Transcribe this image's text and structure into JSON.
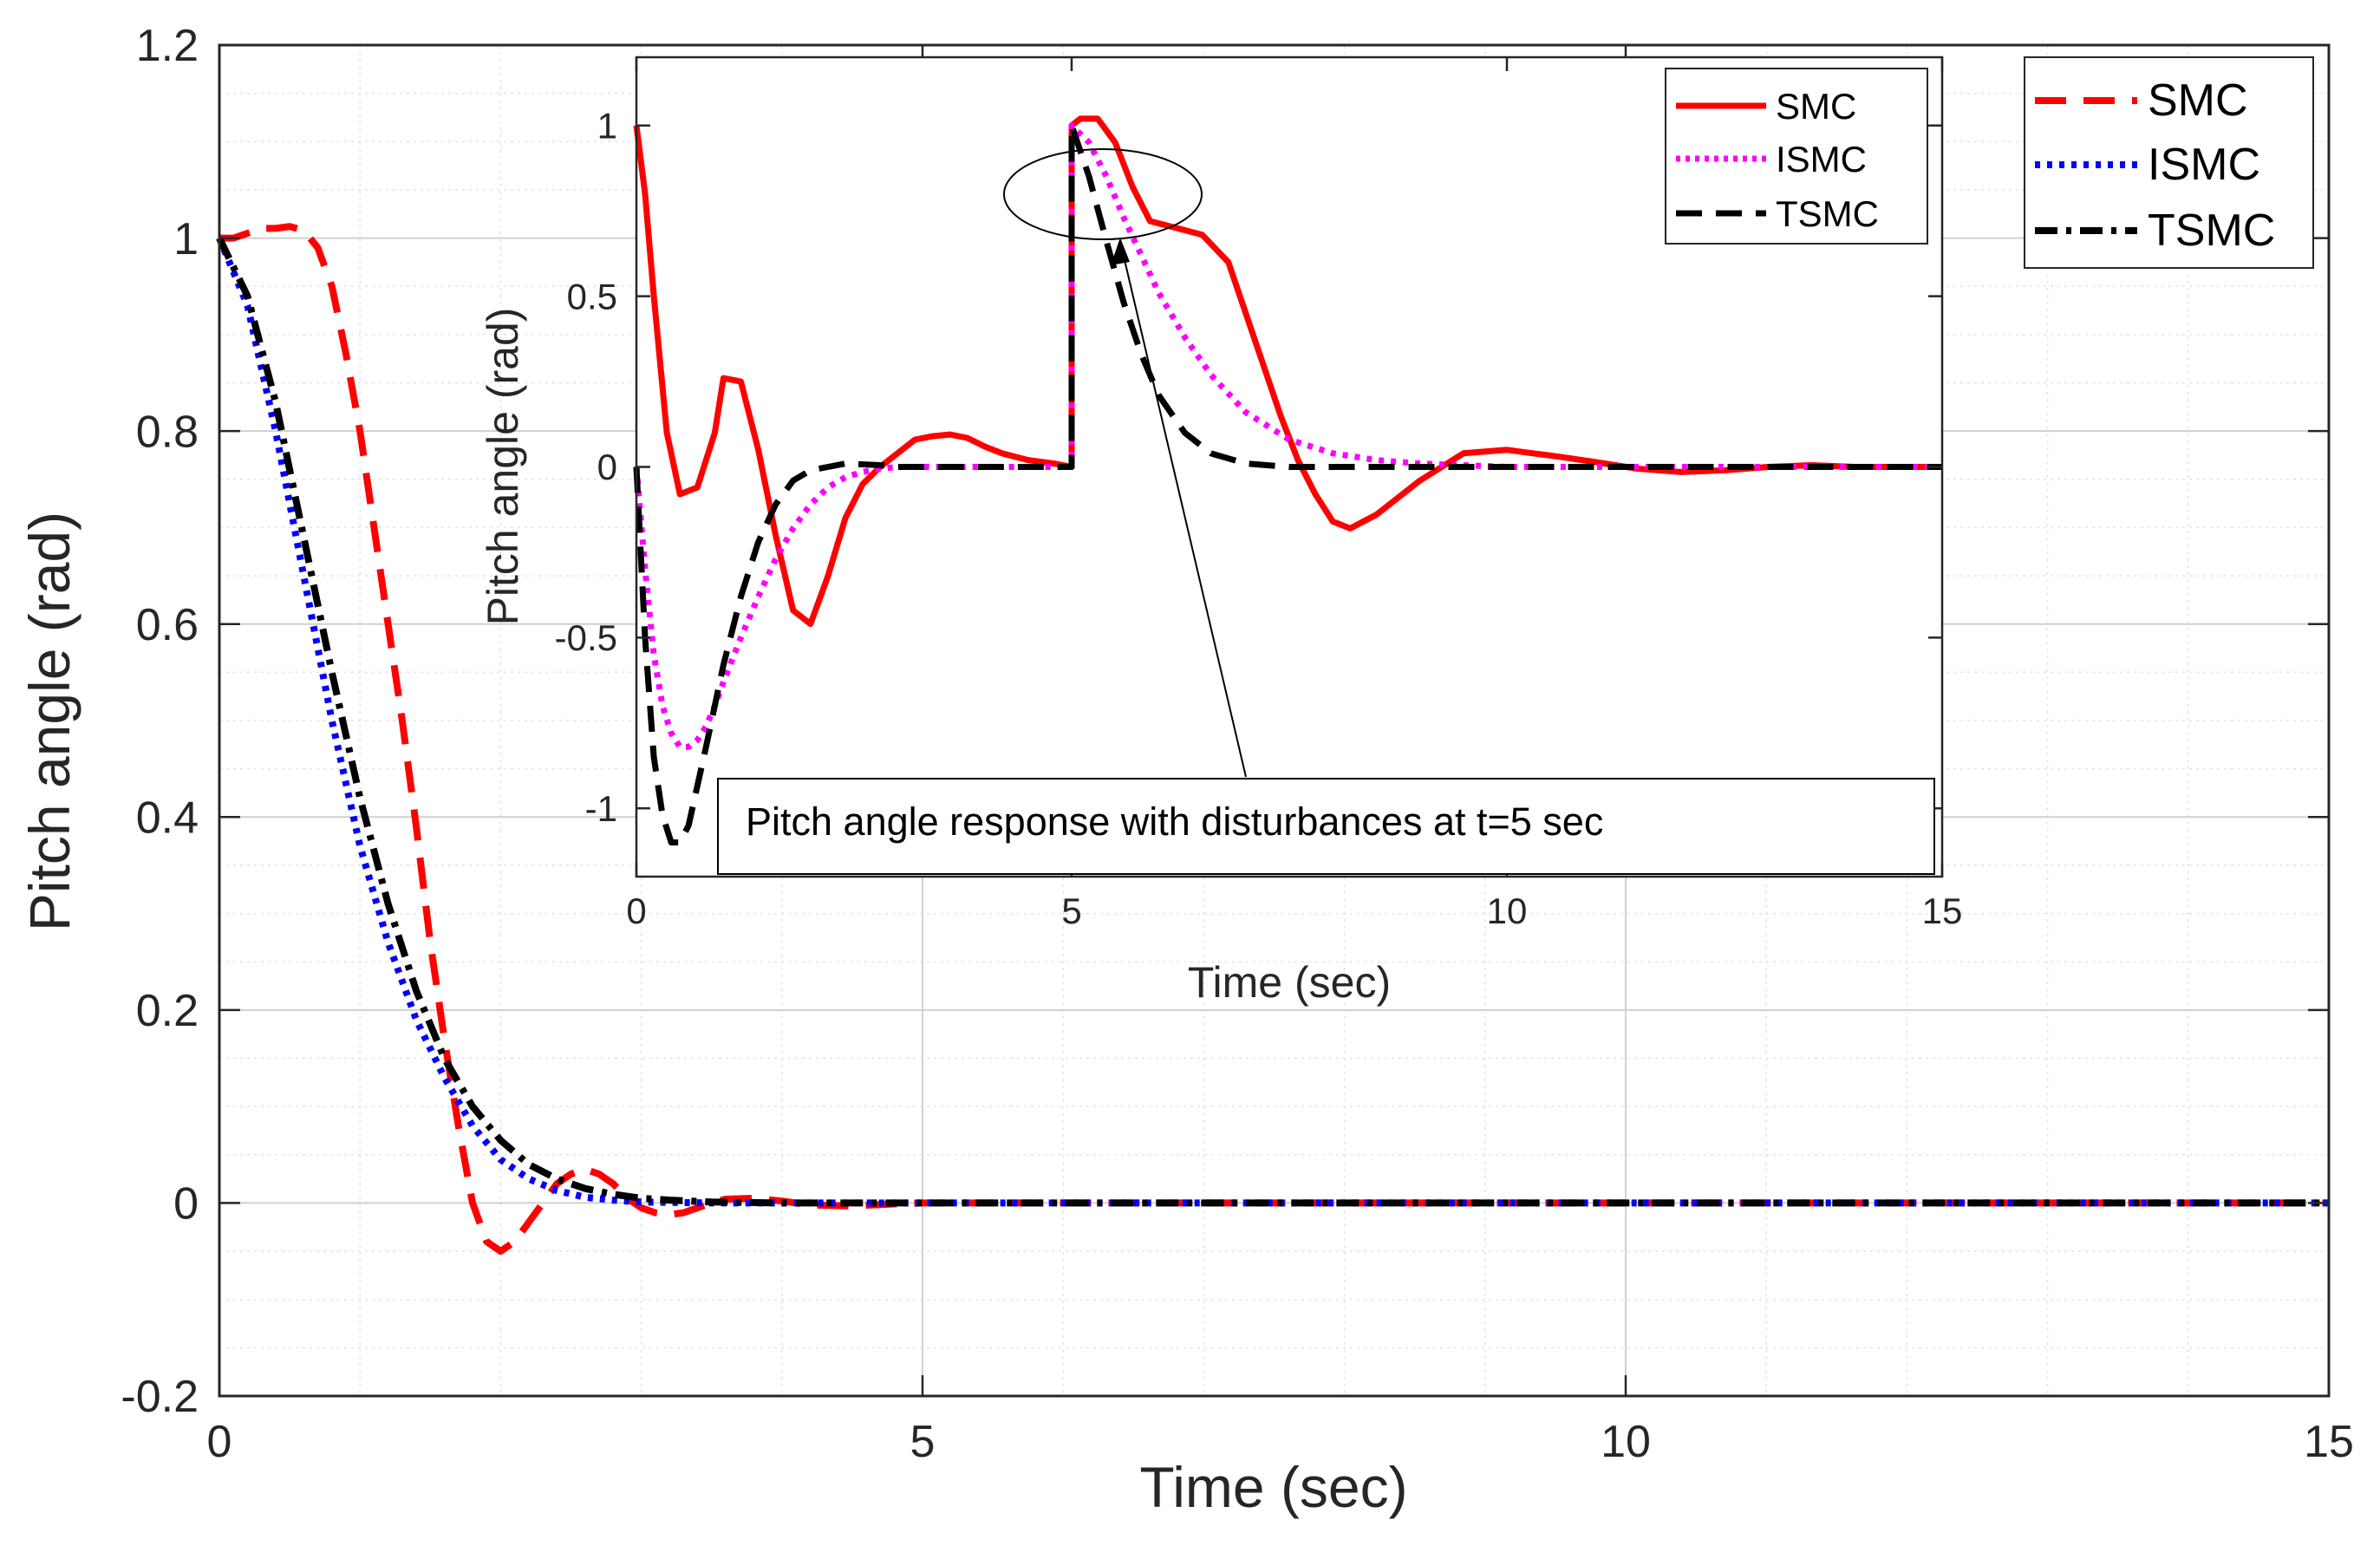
{
  "chart_data": [
    {
      "type": "line",
      "role": "main",
      "xlabel": "Time (sec)",
      "ylabel": "Pitch angle (rad)",
      "xlim": [
        0,
        15
      ],
      "ylim": [
        -0.2,
        1.2
      ],
      "xticks": [
        0,
        5,
        10,
        15
      ],
      "yticks": [
        -0.2,
        0,
        0.2,
        0.4,
        0.6,
        0.8,
        1,
        1.2
      ],
      "ytick_labels": [
        "-0.2",
        "0",
        "0.2",
        "0.4",
        "0.6",
        "0.8",
        "1",
        "1.2"
      ],
      "grid": "major-and-minor",
      "legend_position": "top-right",
      "series": [
        {
          "name": "SMC",
          "color": "#ff0000",
          "style": "dashed",
          "x": [
            0,
            0.1,
            0.2,
            0.3,
            0.4,
            0.5,
            0.6,
            0.7,
            0.8,
            0.9,
            1.0,
            1.1,
            1.2,
            1.3,
            1.4,
            1.5,
            1.6,
            1.7,
            1.8,
            1.9,
            2.0,
            2.1,
            2.2,
            2.3,
            2.4,
            2.5,
            2.6,
            2.7,
            2.8,
            2.9,
            3.0,
            3.1,
            3.2,
            3.3,
            3.4,
            3.5,
            3.6,
            3.8,
            4.0,
            4.2,
            4.5,
            4.8,
            5.0,
            6.0,
            8.0,
            10.0,
            15.0
          ],
          "y": [
            1.0,
            1.0,
            1.005,
            1.01,
            1.01,
            1.012,
            1.008,
            0.99,
            0.95,
            0.88,
            0.8,
            0.7,
            0.6,
            0.5,
            0.39,
            0.27,
            0.17,
            0.08,
            0.0,
            -0.04,
            -0.05,
            -0.04,
            -0.02,
            0.0,
            0.02,
            0.03,
            0.035,
            0.03,
            0.02,
            0.005,
            -0.005,
            -0.01,
            -0.012,
            -0.01,
            -0.005,
            0.0,
            0.004,
            0.005,
            0.002,
            -0.002,
            -0.003,
            -0.001,
            0.0,
            0.0,
            0.0,
            0.0,
            0.0
          ]
        },
        {
          "name": "ISMC",
          "color": "#0000ff",
          "style": "dotted",
          "x": [
            0,
            0.2,
            0.4,
            0.6,
            0.8,
            1.0,
            1.2,
            1.4,
            1.6,
            1.8,
            2.0,
            2.2,
            2.4,
            2.6,
            2.8,
            3.0,
            3.5,
            4.0,
            5.0,
            15.0
          ],
          "y": [
            1.0,
            0.93,
            0.8,
            0.65,
            0.5,
            0.37,
            0.27,
            0.19,
            0.13,
            0.08,
            0.045,
            0.025,
            0.013,
            0.006,
            0.003,
            0.001,
            0.0,
            0.0,
            0.0,
            0.0
          ]
        },
        {
          "name": "TSMC",
          "color": "#000000",
          "style": "dashdot",
          "x": [
            0,
            0.2,
            0.4,
            0.6,
            0.8,
            1.0,
            1.2,
            1.4,
            1.6,
            1.8,
            2.0,
            2.2,
            2.4,
            2.6,
            2.8,
            3.0,
            3.2,
            3.5,
            4.0,
            5.0,
            15.0
          ],
          "y": [
            1.0,
            0.94,
            0.83,
            0.69,
            0.55,
            0.42,
            0.31,
            0.22,
            0.15,
            0.1,
            0.065,
            0.04,
            0.025,
            0.015,
            0.009,
            0.005,
            0.003,
            0.001,
            0.0,
            0.0,
            0.0
          ]
        }
      ]
    },
    {
      "type": "line",
      "role": "inset",
      "xlabel": "Time (sec)",
      "ylabel": "Pitch angle (rad)",
      "xlim": [
        0,
        15
      ],
      "ylim": [
        -1.2,
        1.2
      ],
      "xticks": [
        0,
        5,
        10,
        15
      ],
      "yticks": [
        -1,
        -0.5,
        0,
        0.5,
        1
      ],
      "ytick_labels": [
        "-1",
        "-0.5",
        "0",
        "0.5",
        "1"
      ],
      "legend_position": "top-right",
      "annotation": "Pitch angle response with disturbances at t=5 sec",
      "series": [
        {
          "name": "SMC",
          "color": "#ff0000",
          "style": "solid",
          "x": [
            0,
            0.1,
            0.2,
            0.35,
            0.5,
            0.7,
            0.9,
            1.0,
            1.2,
            1.4,
            1.6,
            1.8,
            2.0,
            2.2,
            2.4,
            2.6,
            2.8,
            3.0,
            3.2,
            3.4,
            3.6,
            3.8,
            4.0,
            4.2,
            4.5,
            4.8,
            5.0,
            5.0,
            5.1,
            5.3,
            5.5,
            5.7,
            5.9,
            6.2,
            6.5,
            6.8,
            7.0,
            7.2,
            7.4,
            7.6,
            7.8,
            8.0,
            8.2,
            8.5,
            9.0,
            9.5,
            10.0,
            10.3,
            10.6,
            11.0,
            11.5,
            12.0,
            12.5,
            13.0,
            13.5,
            14.0,
            15.0
          ],
          "y": [
            1.0,
            0.8,
            0.5,
            0.1,
            -0.08,
            -0.06,
            0.1,
            0.26,
            0.25,
            0.05,
            -0.2,
            -0.42,
            -0.46,
            -0.32,
            -0.15,
            -0.05,
            0.0,
            0.04,
            0.08,
            0.09,
            0.095,
            0.085,
            0.06,
            0.04,
            0.02,
            0.01,
            0.0,
            1.0,
            1.02,
            1.02,
            0.95,
            0.82,
            0.72,
            0.7,
            0.68,
            0.6,
            0.45,
            0.3,
            0.15,
            0.02,
            -0.08,
            -0.16,
            -0.18,
            -0.14,
            -0.04,
            0.04,
            0.05,
            0.04,
            0.03,
            0.015,
            -0.005,
            -0.015,
            -0.01,
            0.0,
            0.005,
            0.0,
            0.0
          ]
        },
        {
          "name": "ISMC",
          "color": "#ff00ff",
          "style": "dotted",
          "x": [
            0,
            0.1,
            0.2,
            0.3,
            0.4,
            0.5,
            0.6,
            0.7,
            0.8,
            0.9,
            1.0,
            1.2,
            1.4,
            1.6,
            1.8,
            2.0,
            2.2,
            2.4,
            2.6,
            2.8,
            3.0,
            3.3,
            3.6,
            4.0,
            5.0,
            5.0,
            5.2,
            5.4,
            5.6,
            5.8,
            6.0,
            6.3,
            6.6,
            7.0,
            7.5,
            8.0,
            8.5,
            9.0,
            10.0,
            11.0,
            12.0,
            15.0
          ],
          "y": [
            0.0,
            -0.3,
            -0.55,
            -0.7,
            -0.78,
            -0.82,
            -0.82,
            -0.8,
            -0.76,
            -0.7,
            -0.63,
            -0.5,
            -0.38,
            -0.27,
            -0.18,
            -0.11,
            -0.06,
            -0.03,
            -0.015,
            -0.005,
            0.0,
            0.0,
            0.0,
            0.0,
            0.0,
            1.0,
            0.95,
            0.85,
            0.73,
            0.62,
            0.51,
            0.38,
            0.27,
            0.16,
            0.08,
            0.04,
            0.02,
            0.01,
            0.0,
            0.0,
            0.0,
            0.0
          ]
        },
        {
          "name": "TSMC",
          "color": "#000000",
          "style": "dashed",
          "x": [
            0,
            0.1,
            0.2,
            0.3,
            0.4,
            0.5,
            0.6,
            0.8,
            1.0,
            1.2,
            1.4,
            1.6,
            1.8,
            2.0,
            2.2,
            2.4,
            2.8,
            3.0,
            4.0,
            5.0,
            5.0,
            5.2,
            5.4,
            5.6,
            5.8,
            6.0,
            6.3,
            6.6,
            7.0,
            7.5,
            8.0,
            9.0,
            15.0
          ],
          "y": [
            0.0,
            -0.5,
            -0.85,
            -1.02,
            -1.1,
            -1.1,
            -1.05,
            -0.82,
            -0.58,
            -0.38,
            -0.22,
            -0.11,
            -0.04,
            -0.01,
            0.0,
            0.01,
            0.005,
            0.0,
            0.0,
            0.0,
            1.0,
            0.85,
            0.66,
            0.48,
            0.33,
            0.21,
            0.1,
            0.04,
            0.01,
            0.0,
            0.0,
            0.0,
            0.0
          ]
        }
      ]
    }
  ]
}
